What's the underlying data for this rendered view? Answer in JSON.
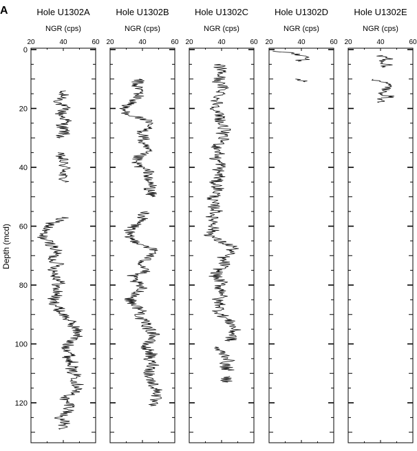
{
  "panel_label": "A",
  "chart_data": {
    "type": "line",
    "orientation": "vertical-depth",
    "ylabel": "Depth (mcd)",
    "y_ticks": [
      0,
      20,
      40,
      60,
      80,
      100,
      120
    ],
    "ylim": [
      0,
      132
    ],
    "y_inverted": true,
    "x_ticks": [
      20,
      40,
      60
    ],
    "xlim": [
      20,
      60
    ],
    "grid": false,
    "panels": [
      {
        "title": "Hole U1302A",
        "xlabel": "NGR (cps)",
        "series": [
          {
            "segments": [
              {
                "depth": [
                  14,
                  16,
                  18,
                  20,
                  22,
                  24,
                  26,
                  28,
                  30
                ],
                "ngr": [
                  38,
                  40,
                  37,
                  41,
                  38,
                  42,
                  39,
                  41,
                  38
                ]
              },
              {
                "depth": [
                  35,
                  37,
                  39,
                  41,
                  43,
                  45
                ],
                "ngr": [
                  36,
                  39,
                  40,
                  42,
                  39,
                  41
                ]
              },
              {
                "depth": [
                  57,
                  59,
                  61,
                  63,
                  65,
                  67,
                  69,
                  71,
                  73,
                  75,
                  77,
                  79,
                  81,
                  83,
                  85,
                  87,
                  89,
                  91,
                  93,
                  95,
                  97,
                  99,
                  101,
                  103,
                  105,
                  107,
                  109,
                  111,
                  113,
                  115,
                  117,
                  119,
                  121,
                  123,
                  125,
                  127,
                  129
                ],
                "ngr": [
                  40,
                  33,
                  29,
                  26,
                  30,
                  34,
                  36,
                  33,
                  37,
                  34,
                  36,
                  38,
                  35,
                  37,
                  33,
                  36,
                  38,
                  42,
                  45,
                  48,
                  50,
                  44,
                  42,
                  45,
                  43,
                  47,
                  44,
                  49,
                  48,
                  50,
                  45,
                  40,
                  45,
                  43,
                  38,
                  41,
                  38
                ]
              }
            ]
          }
        ]
      },
      {
        "title": "Hole U1302B",
        "xlabel": "NGR (cps)",
        "series": [
          {
            "segments": [
              {
                "depth": [
                  10,
                  12,
                  14,
                  16,
                  18,
                  20,
                  22,
                  24,
                  26,
                  28,
                  30,
                  32,
                  34,
                  36,
                  38,
                  40,
                  42,
                  44,
                  46,
                  48,
                  50
                ],
                "ngr": [
                  38,
                  36,
                  39,
                  37,
                  34,
                  27,
                  32,
                  42,
                  44,
                  40,
                  41,
                  39,
                  43,
                  38,
                  35,
                  39,
                  45,
                  42,
                  46,
                  44,
                  46
                ]
              },
              {
                "depth": [
                  55,
                  57,
                  59,
                  61,
                  63,
                  65,
                  67,
                  69,
                  71,
                  73,
                  75,
                  77,
                  79,
                  81,
                  83,
                  85,
                  87,
                  89,
                  91,
                  93,
                  95,
                  97,
                  99,
                  101,
                  103,
                  105,
                  107,
                  109,
                  111,
                  113,
                  115,
                  117,
                  119,
                  121
                ],
                "ngr": [
                  42,
                  40,
                  37,
                  33,
                  30,
                  35,
                  44,
                  48,
                  42,
                  40,
                  43,
                  33,
                  36,
                  39,
                  37,
                  32,
                  36,
                  40,
                  38,
                  42,
                  44,
                  48,
                  44,
                  41,
                  46,
                  43,
                  47,
                  45,
                  44,
                  46,
                  48,
                  50,
                  47,
                  45
                ]
              }
            ]
          }
        ]
      },
      {
        "title": "Hole U1302C",
        "xlabel": "NGR (cps)",
        "series": [
          {
            "segments": [
              {
                "depth": [
                  5,
                  7,
                  9,
                  11,
                  13,
                  15,
                  17,
                  19,
                  21,
                  23,
                  25,
                  27,
                  29,
                  31,
                  33,
                  35,
                  37,
                  39,
                  41,
                  43,
                  45,
                  47,
                  49,
                  51,
                  53,
                  55,
                  57,
                  59,
                  61,
                  63,
                  65,
                  67,
                  69,
                  71,
                  73,
                  75,
                  77,
                  79,
                  81,
                  83,
                  85,
                  87,
                  89,
                  91,
                  93,
                  95,
                  97,
                  99
                ],
                "ngr": [
                  38,
                  40,
                  39,
                  38,
                  41,
                  40,
                  37,
                  38,
                  36,
                  40,
                  39,
                  42,
                  40,
                  41,
                  37,
                  39,
                  36,
                  40,
                  38,
                  39,
                  36,
                  38,
                  37,
                  34,
                  35,
                  37,
                  34,
                  36,
                  35,
                  33,
                  38,
                  48,
                  45,
                  40,
                  42,
                  38,
                  36,
                  40,
                  39,
                  42,
                  37,
                  40,
                  38,
                  42,
                  46,
                  48,
                  47,
                  45
                ]
              },
              {
                "depth": [
                  101,
                  103,
                  105,
                  107,
                  109
                ],
                "ngr": [
                  36,
                  40,
                  45,
                  42,
                  44
                ]
              },
              {
                "depth": [
                  111,
                  113
                ],
                "ngr": [
                  42,
                  44
                ]
              }
            ]
          }
        ]
      },
      {
        "title": "Hole U1302D",
        "xlabel": "NGR (cps)",
        "series": [
          {
            "segments": [
              {
                "depth": [
                  0.5,
                  1,
                  2,
                  3,
                  4
                ],
                "ngr": [
                  25,
                  32,
                  40,
                  44,
                  38
                ]
              },
              {
                "depth": [
                  10,
                  10.5,
                  11
                ],
                "ngr": [
                  38,
                  40,
                  42
                ]
              }
            ]
          }
        ]
      },
      {
        "title": "Hole U1302E",
        "xlabel": "NGR (cps)",
        "series": [
          {
            "segments": [
              {
                "depth": [
                  2,
                  3,
                  4,
                  5,
                  6
                ],
                "ngr": [
                  38,
                  46,
                  42,
                  44,
                  41
                ]
              },
              {
                "depth": [
                  10,
                  11,
                  12,
                  13,
                  14,
                  15,
                  16,
                  17,
                  18
                ],
                "ngr": [
                  36,
                  42,
                  44,
                  46,
                  40,
                  43,
                  45,
                  41,
                  39
                ]
              }
            ]
          }
        ]
      }
    ]
  }
}
